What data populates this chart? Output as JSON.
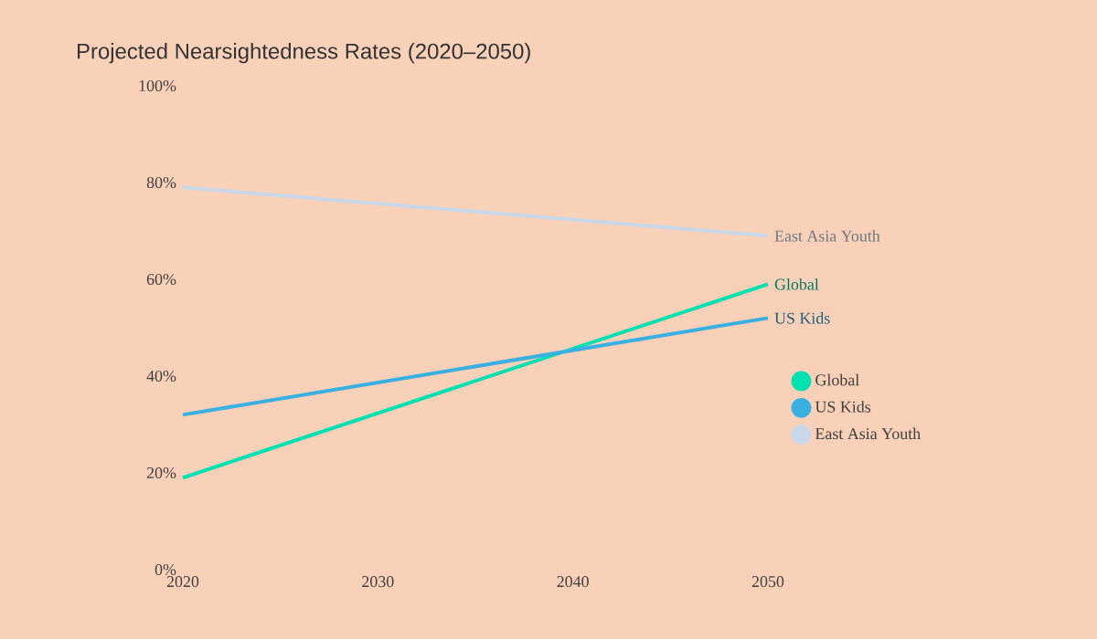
{
  "chart_data": {
    "type": "line",
    "title": "Projected Nearsightedness Rates (2020–2050)",
    "x": [
      2020,
      2050
    ],
    "series": [
      {
        "name": "Global",
        "color": "#00e0b0",
        "values": [
          19,
          59
        ]
      },
      {
        "name": "US Kids",
        "color": "#3ab0e2",
        "values": [
          32,
          52
        ]
      },
      {
        "name": "East Asia Youth",
        "color": "#c8d8e8",
        "values": [
          79,
          69
        ]
      }
    ],
    "xlim": [
      2020,
      2050
    ],
    "xticks": [
      2020,
      2030,
      2040,
      2050
    ],
    "ylim": [
      0,
      100
    ],
    "yticks": [
      {
        "value": 0,
        "label": "0%"
      },
      {
        "value": 20,
        "label": "20%"
      },
      {
        "value": 40,
        "label": "40%"
      },
      {
        "value": 60,
        "label": "60%"
      },
      {
        "value": 80,
        "label": "80%"
      },
      {
        "value": 100,
        "label": "100%"
      }
    ],
    "legend": "right"
  }
}
